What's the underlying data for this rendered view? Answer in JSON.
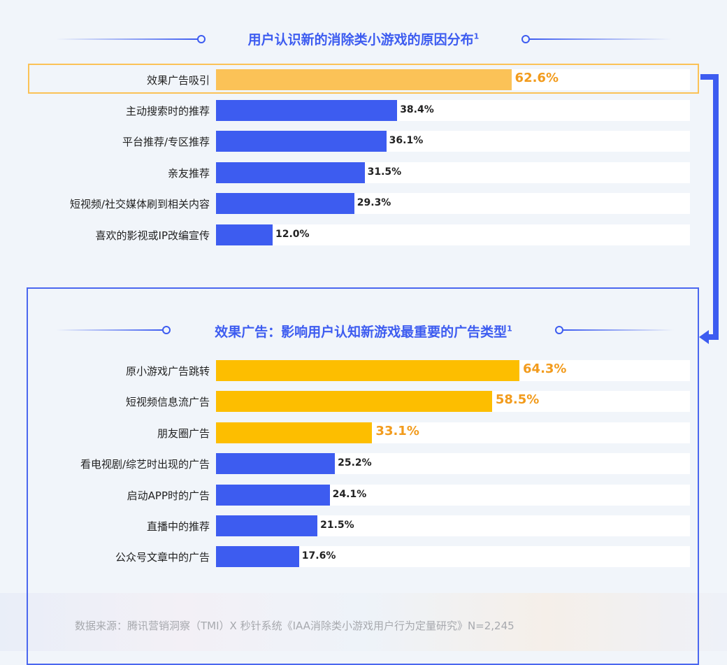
{
  "chart_data": [
    {
      "type": "bar",
      "orientation": "horizontal",
      "title": "用户认识新的消除类小游戏的原因分布",
      "title_sup": "1",
      "categories": [
        "效果广告吸引",
        "主动搜索时的推荐",
        "平台推荐/专区推荐",
        "亲友推荐",
        "短视频/社交媒体刷到相关内容",
        "喜欢的影视或IP改编宣传"
      ],
      "values": [
        62.6,
        38.4,
        36.1,
        31.5,
        29.3,
        12.0
      ],
      "labels": [
        "62.6%",
        "38.4%",
        "36.1%",
        "31.5%",
        "29.3%",
        "12.0%"
      ],
      "highlight": [
        true,
        false,
        false,
        false,
        false,
        false
      ],
      "xlim": [
        0,
        100
      ]
    },
    {
      "type": "bar",
      "orientation": "horizontal",
      "title": "效果广告：影响用户认知新游戏最重要的广告类型",
      "title_sup": "1",
      "categories": [
        "原小游戏广告跳转",
        "短视频信息流广告",
        "朋友圈广告",
        "看电视剧/综艺时出现的广告",
        "启动APP时的广告",
        "直播中的推荐",
        "公众号文章中的广告"
      ],
      "values": [
        64.3,
        58.5,
        33.1,
        25.2,
        24.1,
        21.5,
        17.6
      ],
      "labels": [
        "64.3%",
        "58.5%",
        "33.1%",
        "25.2%",
        "24.1%",
        "21.5%",
        "17.6%"
      ],
      "highlight": [
        true,
        true,
        true,
        false,
        false,
        false,
        false
      ],
      "xlim": [
        0,
        100
      ]
    }
  ],
  "colors": {
    "primary": "#3d5cf0",
    "highlight1": "#fbc257",
    "highlight2": "#fdbe00",
    "highlight_text": "#f29b1c"
  },
  "source": "数据来源：腾讯营销洞察（TMI）X 秒针系统《IAA消除类小游戏用户行为定量研究》N=2,245"
}
